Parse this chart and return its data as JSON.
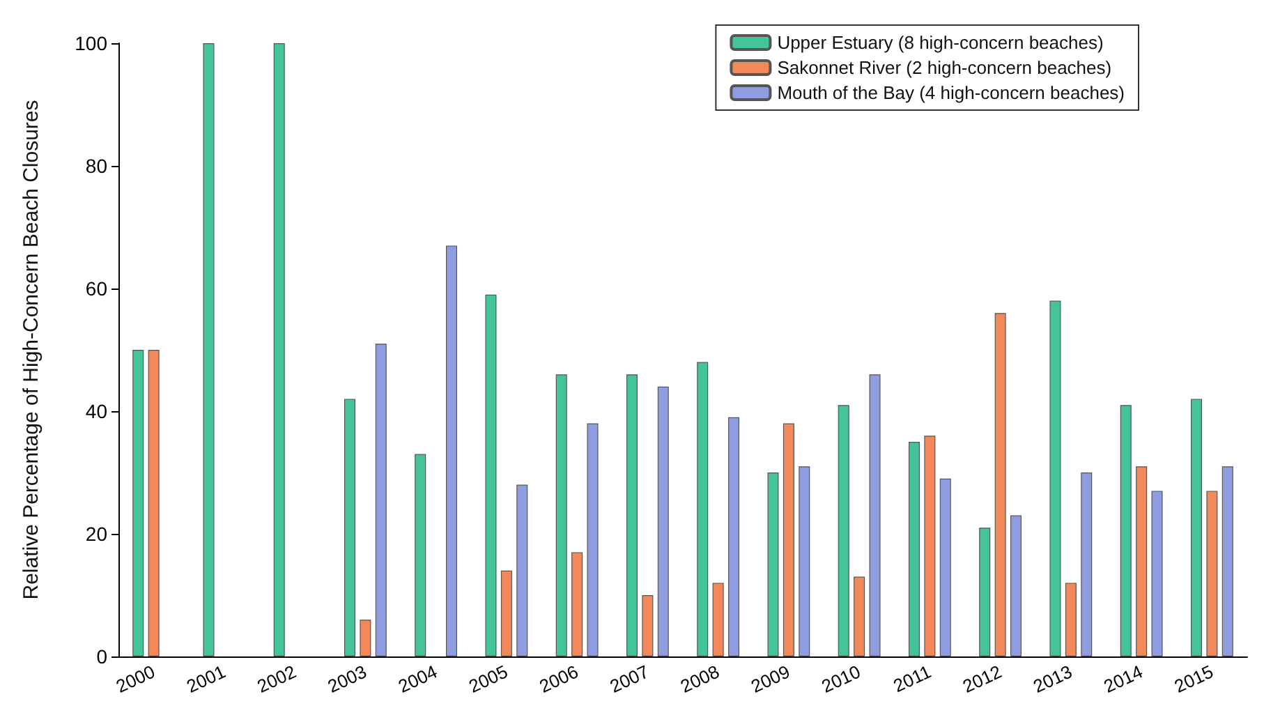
{
  "chart_data": {
    "type": "bar",
    "ylabel": "Relative Percentage of High-Concern Beach Closures",
    "categories": [
      "2000",
      "2001",
      "2002",
      "2003",
      "2004",
      "2005",
      "2006",
      "2007",
      "2008",
      "2009",
      "2010",
      "2011",
      "2012",
      "2013",
      "2014",
      "2015"
    ],
    "series": [
      {
        "name": "Upper Estuary (8 high-concern beaches)",
        "color": "#45c49a",
        "values": [
          50,
          100,
          100,
          42,
          33,
          59,
          46,
          46,
          48,
          30,
          41,
          35,
          21,
          58,
          41,
          42
        ]
      },
      {
        "name": "Sakonnet River (2 high-concern beaches)",
        "color": "#f2895a",
        "values": [
          50,
          null,
          null,
          6,
          null,
          14,
          17,
          10,
          12,
          38,
          13,
          36,
          56,
          12,
          31,
          27
        ]
      },
      {
        "name": "Mouth of the Bay (4 high-concern beaches)",
        "color": "#8f9de0",
        "values": [
          null,
          null,
          null,
          51,
          67,
          28,
          38,
          44,
          39,
          31,
          46,
          29,
          23,
          30,
          27,
          31
        ]
      }
    ],
    "ylim": [
      0,
      100
    ],
    "yticks": [
      0,
      20,
      40,
      60,
      80,
      100
    ],
    "grid": false,
    "legend": "top right"
  }
}
